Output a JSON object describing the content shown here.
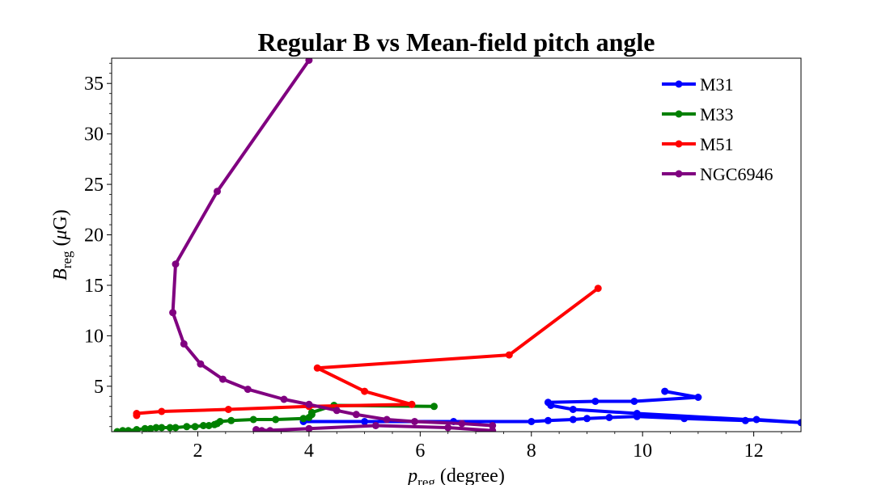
{
  "chart_data": {
    "type": "line",
    "title": "Regular B vs Mean-field pitch angle",
    "xlabel": {
      "symbol": "p",
      "subscript": "reg",
      "rest": " (degree)"
    },
    "ylabel": {
      "symbol": "B",
      "subscript": "reg",
      "rest_open": " (",
      "mu": "μ",
      "rest_close": "G)"
    },
    "xlim": [
      0.45,
      12.85
    ],
    "ylim": [
      0.5,
      37.5
    ],
    "x_ticks": [
      2,
      4,
      6,
      8,
      10,
      12
    ],
    "y_ticks": [
      5,
      10,
      15,
      20,
      25,
      30,
      35
    ],
    "grid": false,
    "legend_position": "upper right",
    "series": [
      {
        "name": "M31",
        "color": "#0000ff",
        "points": [
          [
            3.9,
            1.5
          ],
          [
            5.0,
            1.5
          ],
          [
            6.6,
            1.5
          ],
          [
            8.0,
            1.5
          ],
          [
            8.3,
            1.6
          ],
          [
            8.75,
            1.7
          ],
          [
            9.0,
            1.8
          ],
          [
            9.4,
            1.9
          ],
          [
            9.9,
            2.0
          ],
          [
            10.75,
            1.8
          ],
          [
            11.85,
            1.6
          ],
          [
            12.05,
            1.7
          ],
          [
            12.85,
            1.4
          ],
          [
            9.9,
            2.3
          ],
          [
            8.75,
            2.7
          ],
          [
            8.35,
            3.1
          ],
          [
            8.3,
            3.4
          ],
          [
            9.15,
            3.5
          ],
          [
            9.85,
            3.5
          ],
          [
            11.0,
            3.9
          ],
          [
            10.4,
            4.5
          ]
        ]
      },
      {
        "name": "M33",
        "color": "#008000",
        "points": [
          [
            0.55,
            0.5
          ],
          [
            0.65,
            0.6
          ],
          [
            0.75,
            0.6
          ],
          [
            0.9,
            0.7
          ],
          [
            1.05,
            0.8
          ],
          [
            1.15,
            0.8
          ],
          [
            1.25,
            0.9
          ],
          [
            1.35,
            0.9
          ],
          [
            1.5,
            0.9
          ],
          [
            1.6,
            0.9
          ],
          [
            1.8,
            1.0
          ],
          [
            1.95,
            1.0
          ],
          [
            2.1,
            1.1
          ],
          [
            2.2,
            1.1
          ],
          [
            2.3,
            1.2
          ],
          [
            2.35,
            1.3
          ],
          [
            2.4,
            1.5
          ],
          [
            2.6,
            1.6
          ],
          [
            3.0,
            1.7
          ],
          [
            3.4,
            1.7
          ],
          [
            3.9,
            1.8
          ],
          [
            4.0,
            1.9
          ],
          [
            4.05,
            2.2
          ],
          [
            4.05,
            2.4
          ],
          [
            4.45,
            3.1
          ],
          [
            6.25,
            3.0
          ]
        ]
      },
      {
        "name": "M51",
        "color": "#ff0000",
        "points": [
          [
            0.9,
            2.1
          ],
          [
            0.9,
            2.3
          ],
          [
            1.35,
            2.5
          ],
          [
            2.55,
            2.7
          ],
          [
            4.0,
            3.0
          ],
          [
            5.85,
            3.2
          ],
          [
            5.0,
            4.5
          ],
          [
            4.15,
            6.8
          ],
          [
            7.6,
            8.1
          ],
          [
            9.2,
            14.7
          ]
        ]
      },
      {
        "name": "NGC6946",
        "color": "#800080",
        "points": [
          [
            4.0,
            37.3
          ],
          [
            2.35,
            24.3
          ],
          [
            1.6,
            17.1
          ],
          [
            1.55,
            12.3
          ],
          [
            1.75,
            9.2
          ],
          [
            2.05,
            7.2
          ],
          [
            2.45,
            5.7
          ],
          [
            2.9,
            4.7
          ],
          [
            3.55,
            3.7
          ],
          [
            4.0,
            3.2
          ],
          [
            4.5,
            2.6
          ],
          [
            4.85,
            2.2
          ],
          [
            5.4,
            1.7
          ],
          [
            5.9,
            1.5
          ],
          [
            6.75,
            1.3
          ],
          [
            7.3,
            1.1
          ],
          [
            7.3,
            0.6
          ],
          [
            6.5,
            0.9
          ],
          [
            5.2,
            1.1
          ],
          [
            4.0,
            0.8
          ],
          [
            3.15,
            0.6
          ],
          [
            3.05,
            0.7
          ],
          [
            3.3,
            0.6
          ]
        ]
      }
    ]
  }
}
